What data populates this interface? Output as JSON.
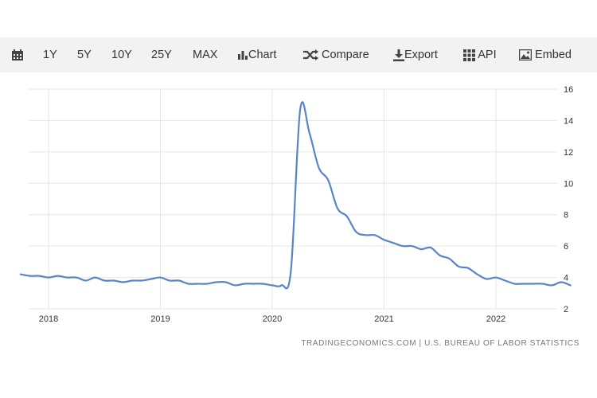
{
  "toolbar": {
    "items": [
      {
        "label": "",
        "icon": "calendar-icon"
      },
      {
        "label": "1Y"
      },
      {
        "label": "5Y"
      },
      {
        "label": "10Y"
      },
      {
        "label": "25Y"
      },
      {
        "label": "MAX"
      },
      {
        "label": "Chart",
        "icon": "bar-chart-icon"
      },
      {
        "label": "Compare",
        "icon": "shuffle-icon"
      },
      {
        "label": "Export",
        "icon": "download-icon"
      },
      {
        "label": "API",
        "icon": "grid-icon"
      },
      {
        "label": "Embed",
        "icon": "image-icon"
      }
    ]
  },
  "source": "TRADINGECONOMICS.COM | U.S. BUREAU OF LABOR STATISTICS",
  "colors": {
    "line": "#5b84c4",
    "grid": "#e6e6e6",
    "toolbar_bg": "#f2f2f2"
  },
  "chart_data": {
    "type": "line",
    "title": "",
    "xlabel": "",
    "ylabel": "",
    "y_axis_position": "right",
    "grid": true,
    "ylim": [
      2,
      16
    ],
    "yticks": [
      2,
      4,
      6,
      8,
      10,
      12,
      14,
      16
    ],
    "xticks": [
      "2018",
      "2019",
      "2020",
      "2021",
      "2022"
    ],
    "series": [
      {
        "values": [
          [
            "2017-10",
            4.2
          ],
          [
            "2017-11",
            4.1
          ],
          [
            "2017-12",
            4.1
          ],
          [
            "2018-01",
            4.0
          ],
          [
            "2018-02",
            4.1
          ],
          [
            "2018-03",
            4.0
          ],
          [
            "2018-04",
            4.0
          ],
          [
            "2018-05",
            3.8
          ],
          [
            "2018-06",
            4.0
          ],
          [
            "2018-07",
            3.8
          ],
          [
            "2018-08",
            3.8
          ],
          [
            "2018-09",
            3.7
          ],
          [
            "2018-10",
            3.8
          ],
          [
            "2018-11",
            3.8
          ],
          [
            "2018-12",
            3.9
          ],
          [
            "2019-01",
            4.0
          ],
          [
            "2019-02",
            3.8
          ],
          [
            "2019-03",
            3.8
          ],
          [
            "2019-04",
            3.6
          ],
          [
            "2019-05",
            3.6
          ],
          [
            "2019-06",
            3.6
          ],
          [
            "2019-07",
            3.7
          ],
          [
            "2019-08",
            3.7
          ],
          [
            "2019-09",
            3.5
          ],
          [
            "2019-10",
            3.6
          ],
          [
            "2019-11",
            3.6
          ],
          [
            "2019-12",
            3.6
          ],
          [
            "2020-01",
            3.5
          ],
          [
            "2020-02",
            3.5
          ],
          [
            "2020-03",
            4.4
          ],
          [
            "2020-04",
            14.7
          ],
          [
            "2020-05",
            13.2
          ],
          [
            "2020-06",
            11.0
          ],
          [
            "2020-07",
            10.2
          ],
          [
            "2020-08",
            8.4
          ],
          [
            "2020-09",
            7.9
          ],
          [
            "2020-10",
            6.9
          ],
          [
            "2020-11",
            6.7
          ],
          [
            "2020-12",
            6.7
          ],
          [
            "2021-01",
            6.4
          ],
          [
            "2021-02",
            6.2
          ],
          [
            "2021-03",
            6.0
          ],
          [
            "2021-04",
            6.0
          ],
          [
            "2021-05",
            5.8
          ],
          [
            "2021-06",
            5.9
          ],
          [
            "2021-07",
            5.4
          ],
          [
            "2021-08",
            5.2
          ],
          [
            "2021-09",
            4.7
          ],
          [
            "2021-10",
            4.6
          ],
          [
            "2021-11",
            4.2
          ],
          [
            "2021-12",
            3.9
          ],
          [
            "2022-01",
            4.0
          ],
          [
            "2022-02",
            3.8
          ],
          [
            "2022-03",
            3.6
          ],
          [
            "2022-04",
            3.6
          ],
          [
            "2022-05",
            3.6
          ],
          [
            "2022-06",
            3.6
          ],
          [
            "2022-07",
            3.5
          ],
          [
            "2022-08",
            3.7
          ],
          [
            "2022-09",
            3.5
          ]
        ]
      }
    ]
  }
}
